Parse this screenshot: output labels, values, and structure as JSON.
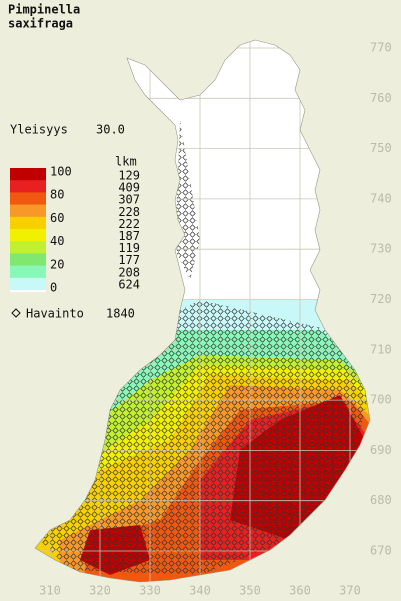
{
  "title": [
    "Pimpinella",
    "saxifraga"
  ],
  "frequency": {
    "label": "Yleisyys",
    "value": "30.0"
  },
  "legend": {
    "scale": [
      100,
      80,
      60,
      40,
      20,
      0
    ],
    "count_header": "lkm",
    "counts": [
      129,
      409,
      307,
      228,
      222,
      187,
      119,
      177,
      208,
      624
    ],
    "colors": [
      "#c00000",
      "#e82020",
      "#f05810",
      "#f89828",
      "#f8d000",
      "#f0f000",
      "#c0f030",
      "#80e870",
      "#88f8b8",
      "#c8f8f8"
    ]
  },
  "observations": {
    "label": "Havainto",
    "count": 1840
  },
  "y_axis": [
    770,
    760,
    750,
    740,
    730,
    720,
    710,
    700,
    690,
    680,
    670
  ],
  "x_axis": [
    310,
    320,
    330,
    340,
    350,
    360,
    370
  ]
}
